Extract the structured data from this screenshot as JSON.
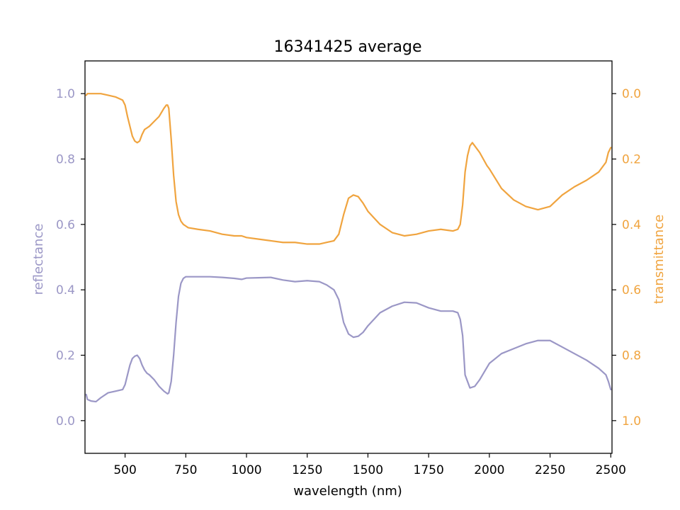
{
  "chart_data": {
    "type": "line",
    "title": "16341425 average",
    "xlabel": "wavelength (nm)",
    "ylabel": "reflectance",
    "y2label": "transmittance",
    "xlim": [
      335,
      2505
    ],
    "ylim": [
      -0.1,
      1.1
    ],
    "y2lim": [
      1.1,
      -0.1
    ],
    "y2_inverted": true,
    "x_ticks": [
      500,
      750,
      1000,
      1250,
      1500,
      1750,
      2000,
      2250,
      2500
    ],
    "x_tick_labels": [
      "500",
      "750",
      "1000",
      "1250",
      "1500",
      "1750",
      "2000",
      "2250",
      "2500"
    ],
    "y_ticks": [
      0.0,
      0.2,
      0.4,
      0.6,
      0.8,
      1.0
    ],
    "y_tick_labels": [
      "0.0",
      "0.2",
      "0.4",
      "0.6",
      "0.8",
      "1.0"
    ],
    "y2_ticks": [
      0.0,
      0.2,
      0.4,
      0.6,
      0.8,
      1.0
    ],
    "y2_tick_labels": [
      "0.0",
      "0.2",
      "0.4",
      "0.6",
      "0.8",
      "1.0"
    ],
    "grid": false,
    "series": [
      {
        "axis": "left",
        "color": "#9b97c6",
        "x": [
          340,
          345,
          360,
          380,
          400,
          430,
          460,
          490,
          500,
          510,
          520,
          530,
          540,
          550,
          560,
          570,
          580,
          590,
          600,
          620,
          640,
          660,
          675,
          680,
          690,
          700,
          710,
          720,
          730,
          740,
          750,
          760,
          800,
          850,
          900,
          950,
          980,
          1000,
          1050,
          1100,
          1150,
          1200,
          1250,
          1300,
          1330,
          1360,
          1380,
          1400,
          1420,
          1440,
          1460,
          1480,
          1500,
          1550,
          1600,
          1650,
          1700,
          1750,
          1800,
          1850,
          1870,
          1880,
          1890,
          1895,
          1900,
          1910,
          1920,
          1940,
          1960,
          1980,
          2000,
          2050,
          2100,
          2150,
          2200,
          2250,
          2300,
          2350,
          2400,
          2450,
          2480,
          2490,
          2500
        ],
        "y": [
          0.08,
          0.065,
          0.06,
          0.058,
          0.07,
          0.085,
          0.09,
          0.095,
          0.11,
          0.14,
          0.17,
          0.19,
          0.197,
          0.2,
          0.19,
          0.17,
          0.155,
          0.145,
          0.14,
          0.125,
          0.105,
          0.09,
          0.082,
          0.085,
          0.12,
          0.2,
          0.3,
          0.38,
          0.42,
          0.435,
          0.44,
          0.44,
          0.44,
          0.44,
          0.438,
          0.435,
          0.432,
          0.436,
          0.437,
          0.438,
          0.43,
          0.425,
          0.428,
          0.425,
          0.415,
          0.4,
          0.37,
          0.3,
          0.265,
          0.255,
          0.258,
          0.27,
          0.29,
          0.33,
          0.35,
          0.362,
          0.36,
          0.345,
          0.335,
          0.335,
          0.33,
          0.31,
          0.26,
          0.2,
          0.14,
          0.12,
          0.1,
          0.105,
          0.125,
          0.15,
          0.175,
          0.205,
          0.22,
          0.235,
          0.245,
          0.245,
          0.225,
          0.205,
          0.185,
          0.16,
          0.14,
          0.12,
          0.095
        ]
      },
      {
        "axis": "right",
        "color": "#f0a43f",
        "x": [
          340,
          345,
          360,
          380,
          400,
          430,
          460,
          490,
          500,
          510,
          520,
          530,
          540,
          550,
          560,
          570,
          580,
          590,
          600,
          620,
          640,
          660,
          670,
          675,
          680,
          690,
          700,
          710,
          720,
          730,
          740,
          750,
          760,
          800,
          850,
          900,
          950,
          980,
          1000,
          1050,
          1100,
          1150,
          1200,
          1250,
          1300,
          1330,
          1360,
          1380,
          1400,
          1420,
          1440,
          1460,
          1480,
          1500,
          1550,
          1600,
          1650,
          1700,
          1750,
          1800,
          1850,
          1870,
          1880,
          1890,
          1900,
          1910,
          1920,
          1930,
          1960,
          1990,
          2000,
          2050,
          2100,
          2150,
          2200,
          2250,
          2300,
          2350,
          2400,
          2450,
          2480,
          2490,
          2500
        ],
        "y": [
          0.005,
          0.0,
          0.0,
          0.0,
          0.0,
          0.005,
          0.01,
          0.02,
          0.035,
          0.07,
          0.1,
          0.13,
          0.145,
          0.15,
          0.145,
          0.125,
          0.11,
          0.105,
          0.1,
          0.085,
          0.07,
          0.045,
          0.035,
          0.035,
          0.045,
          0.14,
          0.25,
          0.33,
          0.37,
          0.39,
          0.4,
          0.405,
          0.41,
          0.415,
          0.42,
          0.43,
          0.435,
          0.435,
          0.44,
          0.445,
          0.45,
          0.455,
          0.455,
          0.46,
          0.46,
          0.455,
          0.45,
          0.43,
          0.37,
          0.32,
          0.31,
          0.315,
          0.335,
          0.36,
          0.4,
          0.425,
          0.435,
          0.43,
          0.42,
          0.415,
          0.42,
          0.415,
          0.4,
          0.34,
          0.24,
          0.19,
          0.16,
          0.15,
          0.18,
          0.22,
          0.23,
          0.29,
          0.325,
          0.345,
          0.355,
          0.345,
          0.31,
          0.285,
          0.265,
          0.24,
          0.21,
          0.18,
          0.165
        ]
      }
    ]
  }
}
